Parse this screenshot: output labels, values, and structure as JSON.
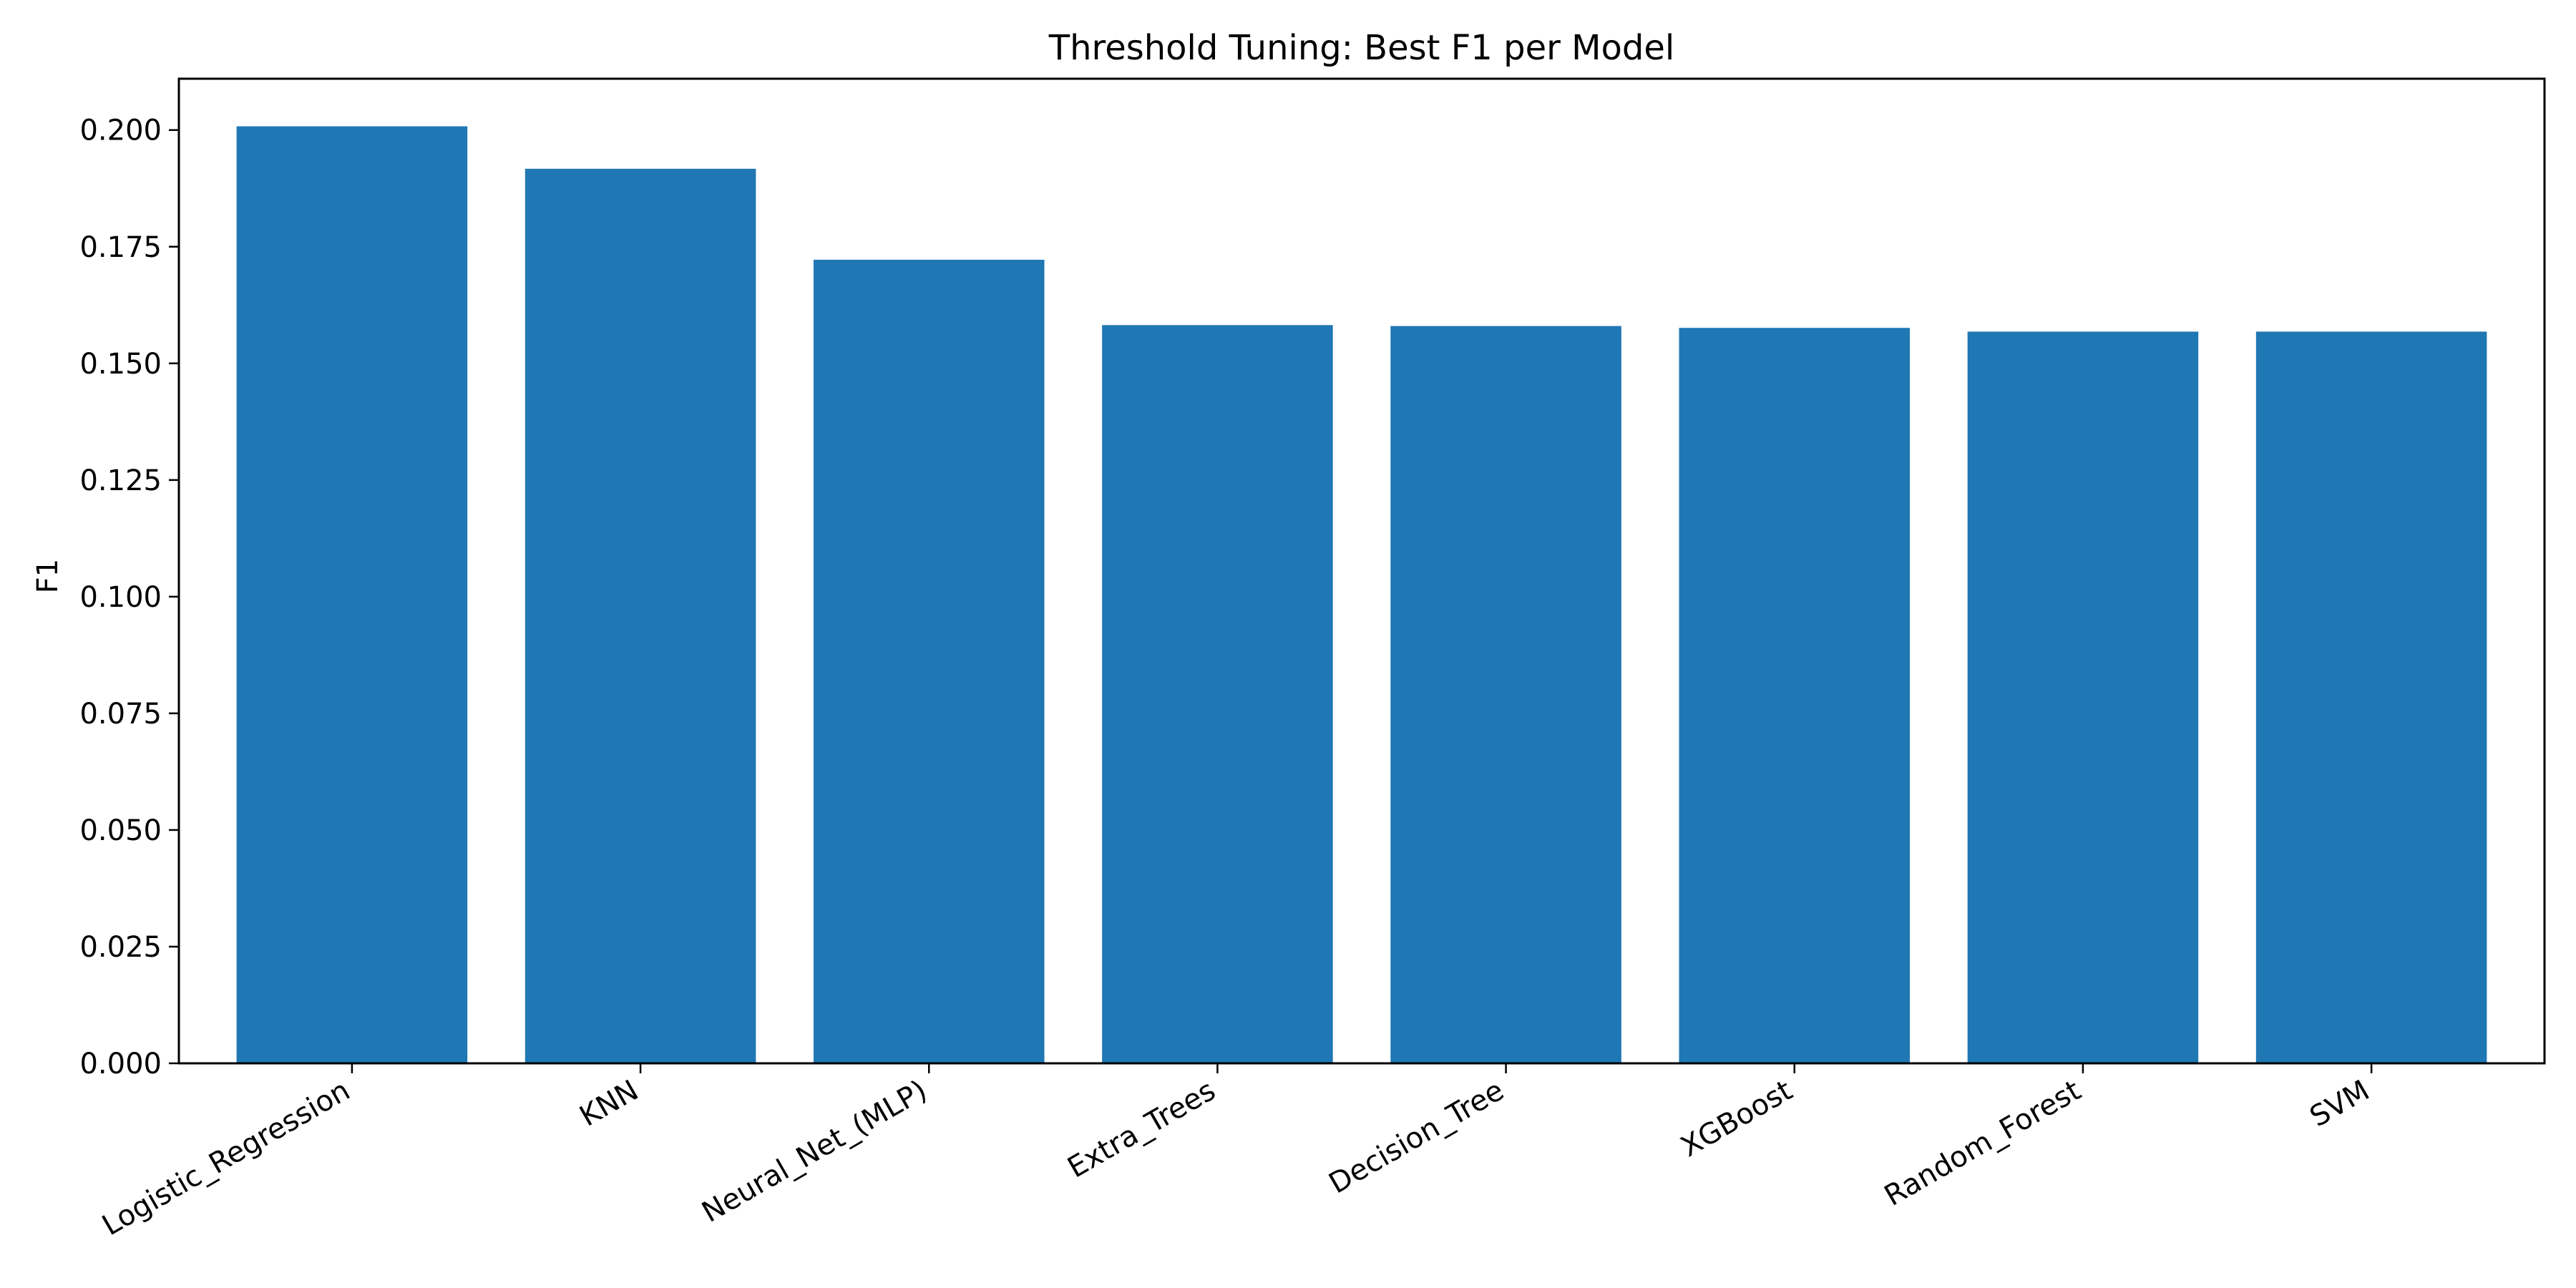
{
  "chart_data": {
    "type": "bar",
    "title": "Threshold Tuning: Best F1 per Model",
    "xlabel": "",
    "ylabel": "F1",
    "categories": [
      "Logistic_Regression",
      "KNN",
      "Neural_Net_(MLP)",
      "Extra_Trees",
      "Decision_Tree",
      "XGBoost",
      "Random_Forest",
      "SVM"
    ],
    "values": [
      0.2008,
      0.1917,
      0.1722,
      0.1582,
      0.158,
      0.1576,
      0.1568,
      0.1568
    ],
    "ylim": [
      0,
      0.211
    ],
    "yticks": [
      "0.000",
      "0.025",
      "0.050",
      "0.075",
      "0.100",
      "0.125",
      "0.150",
      "0.175",
      "0.200"
    ],
    "bar_color": "#1f77b4",
    "grid": false
  }
}
